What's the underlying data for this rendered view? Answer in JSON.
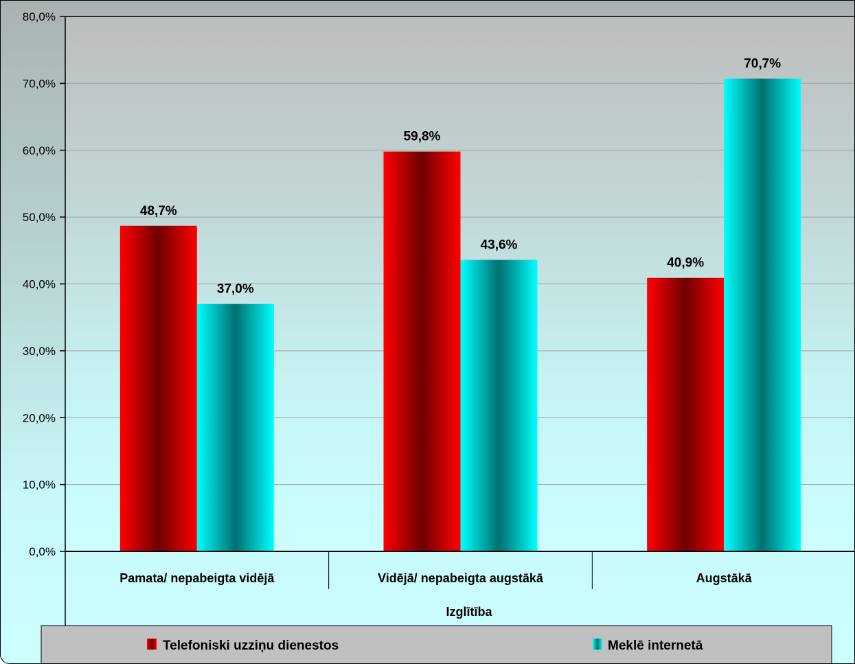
{
  "chart_data": {
    "type": "bar",
    "categories": [
      "Pamata/ nepabeigta vidējā",
      "Vidējā/ nepabeigta augstākā",
      "Augstākā"
    ],
    "series": [
      {
        "name": "Telefoniski uzziņu dienestos",
        "values": [
          48.7,
          59.8,
          40.9
        ],
        "labels": [
          "48,7%",
          "59,8%",
          "40,9%"
        ],
        "color": "#ff0000"
      },
      {
        "name": "Meklē internetā",
        "values": [
          37.0,
          43.6,
          70.7
        ],
        "labels": [
          "37,0%",
          "43,6%",
          "70,7%"
        ],
        "color": "#00ffff"
      }
    ],
    "ylim": [
      0,
      80
    ],
    "yticks": [
      0,
      10,
      20,
      30,
      40,
      50,
      60,
      70,
      80
    ],
    "ytick_labels": [
      "0,0%",
      "10,0%",
      "20,0%",
      "30,0%",
      "40,0%",
      "50,0%",
      "60,0%",
      "70,0%",
      "80,0%"
    ],
    "xlabel": "Izglītība",
    "ylabel": "",
    "title": "",
    "grid": true,
    "legend": "bottom"
  }
}
